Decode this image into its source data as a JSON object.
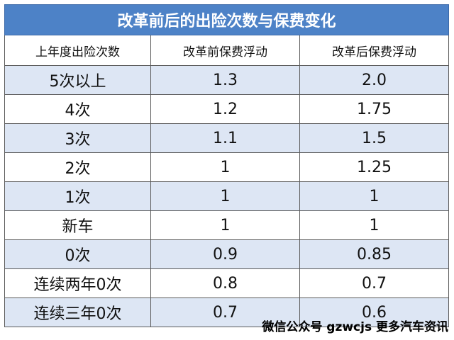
{
  "title": "改革前后的出险次数与保费变化",
  "columns": [
    "上年度出险次数",
    "改革前保费浮动",
    "改革后保费浮动"
  ],
  "rows": [
    {
      "count": "5次以上",
      "before": "1.3",
      "after": "2.0"
    },
    {
      "count": "4次",
      "before": "1.2",
      "after": "1.75"
    },
    {
      "count": "3次",
      "before": "1.1",
      "after": "1.5"
    },
    {
      "count": "2次",
      "before": "1",
      "after": "1.25"
    },
    {
      "count": "1次",
      "before": "1",
      "after": "1"
    },
    {
      "count": "新车",
      "before": "1",
      "after": "1"
    },
    {
      "count": "0次",
      "before": "0.9",
      "after": "0.85"
    },
    {
      "count": "连续两年0次",
      "before": "0.8",
      "after": "0.7"
    },
    {
      "count": "连续三年0次",
      "before": "0.7",
      "after": "0.6"
    }
  ],
  "footer": "微信公众号 gzwcjs 更多汽车资讯",
  "colors": {
    "title_bg": "#4d82c7",
    "stripe_bg": "#dde6f4"
  }
}
